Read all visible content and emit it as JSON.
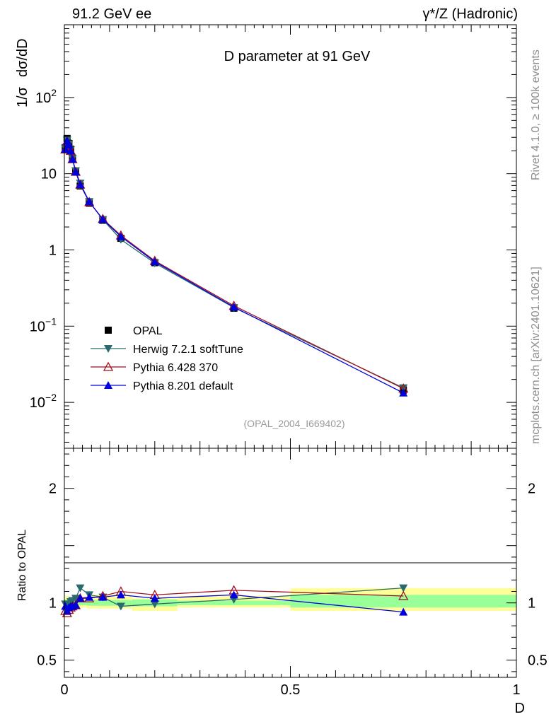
{
  "header": {
    "left": "91.2 GeV ee",
    "right": "γ*/Z (Hadronic)"
  },
  "side_labels": {
    "rivet": "Rivet 4.1.0, ≥ 100k events",
    "mcplots": "mcplots.cern.ch [arXiv:2401.10621]"
  },
  "chart_data": [
    {
      "type": "line",
      "title": "D parameter at 91 GeV",
      "ylabel": "1/σ  dσ/dD",
      "ylabel_parts": {
        "norm": "1/σ",
        "deriv": "dσ/dD"
      },
      "yscale": "log",
      "ylim": [
        0.0025,
        900
      ],
      "xlim": [
        0,
        1
      ],
      "y_ticks": [
        {
          "value": 0.01,
          "mantissa": "10",
          "exp": "−2"
        },
        {
          "value": 0.1,
          "mantissa": "10",
          "exp": "−1"
        },
        {
          "value": 1,
          "mantissa": "1",
          "exp": ""
        },
        {
          "value": 10,
          "mantissa": "10",
          "exp": ""
        },
        {
          "value": 100,
          "mantissa": "10",
          "exp": "2"
        }
      ],
      "reference": "(OPAL_2004_I669402)",
      "legend_position": "bottom-left",
      "x": [
        0.002,
        0.006,
        0.01,
        0.014,
        0.018,
        0.025,
        0.035,
        0.055,
        0.085,
        0.125,
        0.2,
        0.375,
        0.75
      ],
      "series": [
        {
          "name": "OPAL",
          "color": "#000000",
          "marker": "square",
          "line": false,
          "values": [
            22.0,
            29.0,
            25.0,
            21.0,
            16.0,
            10.8,
            6.9,
            4.1,
            2.45,
            1.42,
            0.68,
            0.172,
            0.0145
          ]
        },
        {
          "name": "Herwig 7.2.1 softTune",
          "color": "#2b6a6c",
          "marker": "triangle-down",
          "line": true,
          "values": [
            21.5,
            27.5,
            24.5,
            20.5,
            15.8,
            10.9,
            7.5,
            4.3,
            2.5,
            1.37,
            0.672,
            0.175,
            0.0155
          ]
        },
        {
          "name": "Pythia 6.428 370",
          "color": "#a01020",
          "marker": "triangle-up-open",
          "line": true,
          "values": [
            20.8,
            26.5,
            23.5,
            20.0,
            15.5,
            10.6,
            7.2,
            4.25,
            2.55,
            1.55,
            0.72,
            0.185,
            0.0152
          ]
        },
        {
          "name": "Pythia 8.201 default",
          "color": "#0000dd",
          "marker": "triangle-up",
          "line": true,
          "values": [
            21.0,
            27.0,
            24.0,
            20.0,
            15.5,
            10.6,
            7.2,
            4.3,
            2.52,
            1.5,
            0.7,
            0.178,
            0.0133
          ]
        }
      ]
    },
    {
      "type": "line",
      "ylabel": "Ratio to OPAL",
      "xlabel": "D",
      "ylim": [
        0.35,
        2.35
      ],
      "xlim": [
        0,
        1
      ],
      "y_ticks": [
        {
          "value": 0.5,
          "label": "0.5"
        },
        {
          "value": 1,
          "label": "1"
        },
        {
          "value": 2,
          "label": "2"
        }
      ],
      "x_ticks": [
        {
          "value": 0,
          "label": "0"
        },
        {
          "value": 0.5,
          "label": "0.5"
        },
        {
          "value": 1,
          "label": "1"
        }
      ],
      "bands": [
        {
          "x0": 0.0,
          "x1": 0.01,
          "y_green": [
            0.97,
            1.03
          ],
          "y_yellow": [
            0.94,
            1.06
          ]
        },
        {
          "x0": 0.01,
          "x1": 0.02,
          "y_green": [
            0.975,
            1.025
          ],
          "y_yellow": [
            0.95,
            1.05
          ]
        },
        {
          "x0": 0.02,
          "x1": 0.05,
          "y_green": [
            0.98,
            1.02
          ],
          "y_yellow": [
            0.96,
            1.05
          ]
        },
        {
          "x0": 0.05,
          "x1": 0.15,
          "y_green": [
            0.975,
            1.025
          ],
          "y_yellow": [
            0.95,
            1.07
          ]
        },
        {
          "x0": 0.15,
          "x1": 0.25,
          "y_green": [
            0.97,
            1.03
          ],
          "y_yellow": [
            0.93,
            1.04
          ]
        },
        {
          "x0": 0.25,
          "x1": 0.5,
          "y_green": [
            0.98,
            1.02
          ],
          "y_yellow": [
            0.96,
            1.06
          ]
        },
        {
          "x0": 0.5,
          "x1": 1.0,
          "y_green": [
            0.96,
            1.07
          ],
          "y_yellow": [
            0.93,
            1.13
          ]
        }
      ],
      "x": [
        0.002,
        0.006,
        0.01,
        0.014,
        0.018,
        0.025,
        0.035,
        0.055,
        0.085,
        0.125,
        0.2,
        0.375,
        0.75
      ],
      "series": [
        {
          "name": "Herwig 7.2.1 softTune",
          "color": "#2b6a6c",
          "marker": "triangle-down",
          "values": [
            0.99,
            0.96,
            0.99,
            1.01,
            1.02,
            1.04,
            1.13,
            1.07,
            1.05,
            0.97,
            0.99,
            1.03,
            1.13
          ]
        },
        {
          "name": "Pythia 6.428 370",
          "color": "#a01020",
          "marker": "triangle-up-open",
          "values": [
            0.93,
            0.91,
            0.94,
            0.96,
            0.97,
            0.98,
            1.04,
            1.04,
            1.06,
            1.1,
            1.07,
            1.11,
            1.06
          ]
        },
        {
          "name": "Pythia 8.201 default",
          "color": "#0000dd",
          "marker": "triangle-up",
          "values": [
            0.97,
            0.93,
            0.96,
            0.97,
            0.97,
            0.98,
            1.04,
            1.05,
            1.05,
            1.07,
            1.04,
            1.07,
            0.92
          ]
        }
      ]
    }
  ]
}
